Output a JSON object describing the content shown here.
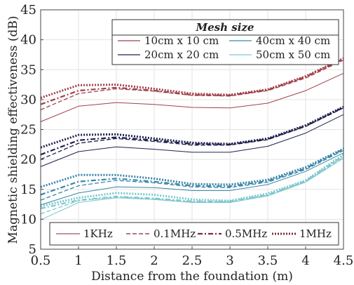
{
  "chart_data": {
    "type": "line",
    "xlabel": "Distance from the foundation (m)",
    "ylabel": "Magnetic shielding effectiveness (dB)",
    "xlim": [
      0.5,
      4.5
    ],
    "ylim": [
      5,
      45
    ],
    "xticks": [
      "0.5",
      "1",
      "1.5",
      "2",
      "2.5",
      "3",
      "3.5",
      "4",
      "4.5"
    ],
    "yticks": [
      "5",
      "10",
      "15",
      "20",
      "25",
      "30",
      "35",
      "40",
      "45"
    ],
    "grid": true,
    "x": [
      0.5,
      1,
      1.5,
      2,
      2.5,
      3,
      3.5,
      4,
      4.5
    ],
    "legend_mesh": {
      "title": "Mesh size",
      "placement": "top-right",
      "entries": [
        {
          "label": "10cm x 10 cm",
          "color": "#a0404c"
        },
        {
          "label": "40cm x 40 cm",
          "color": "#3a86a8"
        },
        {
          "label": "20cm x 20 cm",
          "color": "#202050"
        },
        {
          "label": "50cm x 50 cm",
          "color": "#7cc8cc"
        }
      ]
    },
    "legend_freq": {
      "placement": "bottom",
      "entries": [
        {
          "label": "1KHz",
          "dash": "solid"
        },
        {
          "label": "0.1MHz",
          "dash": "dashed"
        },
        {
          "label": "0.5MHz",
          "dash": "dashdot"
        },
        {
          "label": "1MHz",
          "dash": "dotted"
        }
      ]
    },
    "series": [
      {
        "mesh": "10cm x 10 cm",
        "freq": "1KHz",
        "values": [
          26.3,
          28.9,
          29.5,
          29.2,
          28.7,
          28.6,
          29.4,
          31.5,
          34.4
        ]
      },
      {
        "mesh": "10cm x 10 cm",
        "freq": "0.1MHz",
        "values": [
          28.3,
          31.0,
          31.8,
          31.4,
          30.7,
          30.6,
          31.5,
          33.6,
          36.6
        ]
      },
      {
        "mesh": "10cm x 10 cm",
        "freq": "0.5MHz",
        "values": [
          29.2,
          31.5,
          32.0,
          31.5,
          30.8,
          30.7,
          31.6,
          33.8,
          36.8
        ]
      },
      {
        "mesh": "10cm x 10 cm",
        "freq": "1MHz",
        "values": [
          30.3,
          32.4,
          32.5,
          31.8,
          31.0,
          30.8,
          31.7,
          33.9,
          36.9
        ]
      },
      {
        "mesh": "20cm x 20 cm",
        "freq": "1KHz",
        "values": [
          18.8,
          21.3,
          22.1,
          21.7,
          21.2,
          21.2,
          22.2,
          24.4,
          27.5
        ]
      },
      {
        "mesh": "20cm x 20 cm",
        "freq": "0.1MHz",
        "values": [
          20.0,
          22.7,
          23.5,
          23.0,
          22.4,
          22.4,
          23.3,
          25.5,
          28.6
        ]
      },
      {
        "mesh": "20cm x 20 cm",
        "freq": "0.5MHz",
        "values": [
          20.8,
          23.2,
          23.7,
          23.2,
          22.6,
          22.5,
          23.4,
          25.6,
          28.7
        ]
      },
      {
        "mesh": "20cm x 20 cm",
        "freq": "1MHz",
        "values": [
          22.0,
          24.1,
          24.2,
          23.5,
          22.8,
          22.6,
          23.5,
          25.7,
          28.8
        ]
      },
      {
        "mesh": "40cm x 40 cm",
        "freq": "1KHz",
        "values": [
          12.4,
          14.4,
          15.4,
          15.3,
          14.8,
          14.8,
          15.8,
          18.0,
          21.1
        ]
      },
      {
        "mesh": "40cm x 40 cm",
        "freq": "0.1MHz",
        "values": [
          13.2,
          15.6,
          16.5,
          16.1,
          15.4,
          15.3,
          16.2,
          18.3,
          21.5
        ]
      },
      {
        "mesh": "40cm x 40 cm",
        "freq": "0.5MHz",
        "values": [
          14.1,
          16.3,
          16.8,
          16.3,
          15.6,
          15.5,
          16.4,
          18.5,
          21.7
        ]
      },
      {
        "mesh": "40cm x 40 cm",
        "freq": "1MHz",
        "values": [
          15.4,
          17.4,
          17.4,
          16.8,
          15.9,
          15.8,
          16.6,
          18.7,
          21.8
        ]
      },
      {
        "mesh": "50cm x 50 cm",
        "freq": "1KHz",
        "values": [
          9.9,
          12.8,
          13.6,
          13.3,
          12.8,
          12.8,
          13.9,
          16.2,
          20.2
        ]
      },
      {
        "mesh": "50cm x 50 cm",
        "freq": "0.1MHz",
        "values": [
          10.9,
          13.1,
          13.7,
          13.4,
          12.9,
          12.9,
          14.0,
          16.3,
          20.4
        ]
      },
      {
        "mesh": "50cm x 50 cm",
        "freq": "0.5MHz",
        "values": [
          11.8,
          13.2,
          13.8,
          13.5,
          13.0,
          13.0,
          14.1,
          16.4,
          20.6
        ]
      },
      {
        "mesh": "50cm x 50 cm",
        "freq": "1MHz",
        "values": [
          12.2,
          13.6,
          14.4,
          14.1,
          13.3,
          13.1,
          14.3,
          16.5,
          20.8
        ]
      }
    ]
  }
}
